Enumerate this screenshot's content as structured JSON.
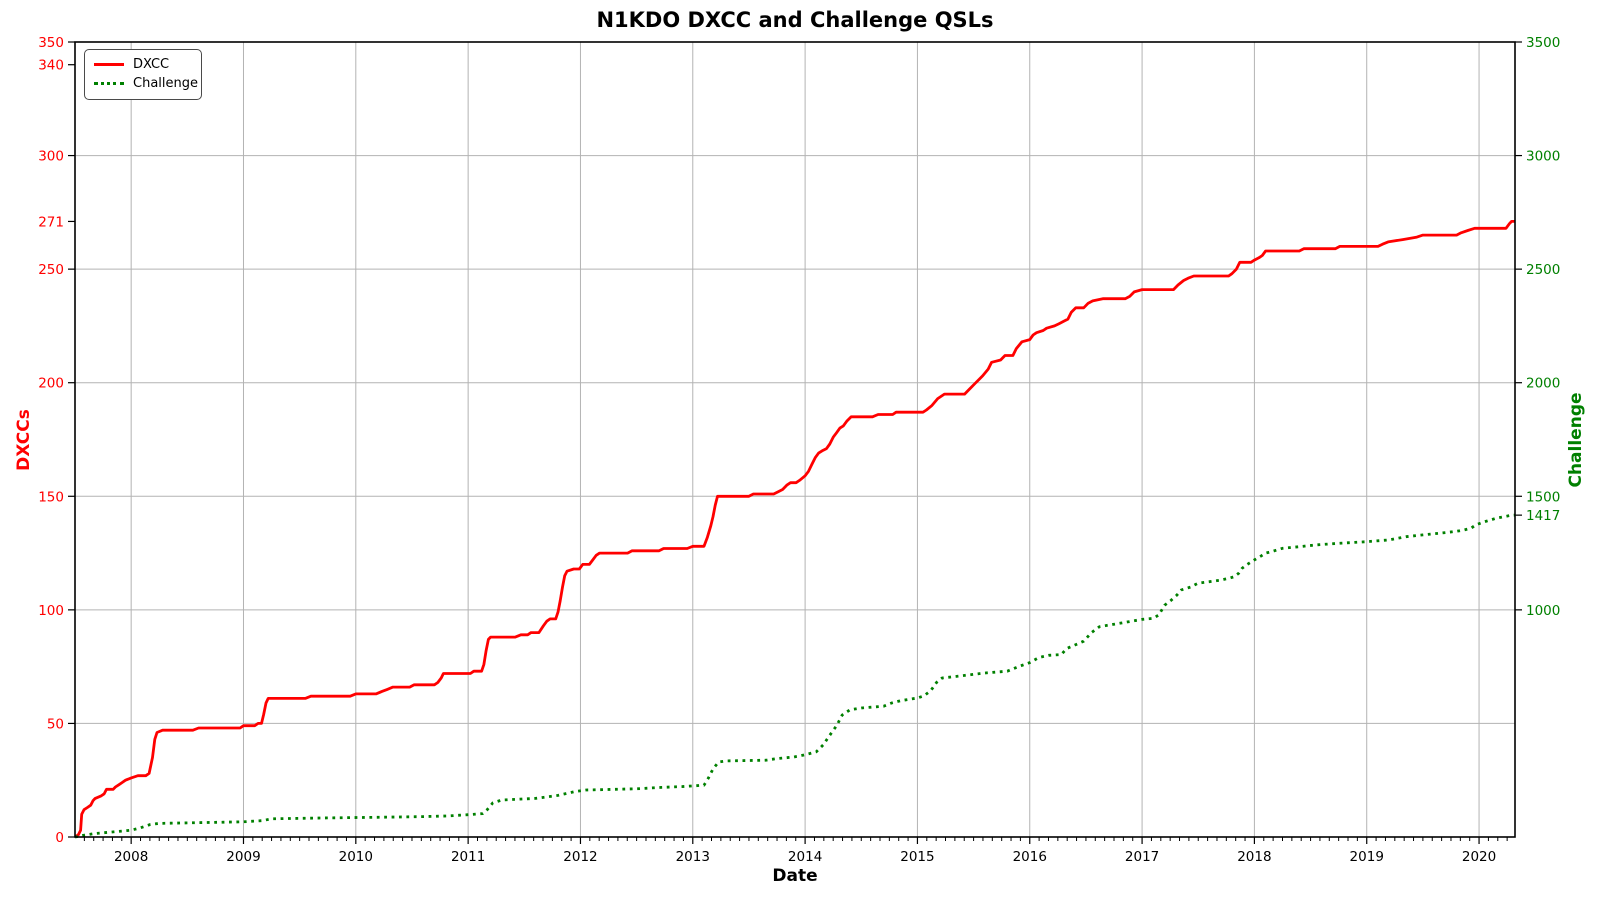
{
  "chart_data": {
    "type": "line",
    "title": "N1KDO DXCC and Challenge QSLs",
    "xlabel": "Date",
    "ylabel_left": "DXCCs",
    "ylabel_right": "Challenge",
    "grid": true,
    "legend_position": "upper-left",
    "colors": {
      "dxcc": "#ff0000",
      "challenge": "#008000",
      "grid": "#b3b3b3",
      "spine": "#000000"
    },
    "x_domain": [
      2007.5,
      2020.32
    ],
    "x_tick_years": [
      2008,
      2009,
      2010,
      2011,
      2012,
      2013,
      2014,
      2015,
      2016,
      2017,
      2018,
      2019,
      2020
    ],
    "y_left": {
      "lim": [
        0,
        350
      ],
      "ticks": [
        0,
        50,
        100,
        150,
        200,
        250,
        271,
        300,
        340,
        350
      ],
      "gridlines": [
        50,
        100,
        150,
        200,
        250,
        300,
        350
      ]
    },
    "y_right": {
      "lim": [
        0,
        3500
      ],
      "ticks": [
        1000,
        1417,
        1500,
        2000,
        2500,
        3000,
        3500
      ]
    },
    "legend": [
      {
        "label": "DXCC",
        "style": "solid"
      },
      {
        "label": "Challenge",
        "style": "dotted"
      }
    ],
    "series": [
      {
        "name": "DXCC",
        "axis": "left",
        "style": "solid",
        "points": [
          [
            2007.5,
            0
          ],
          [
            2007.53,
            1
          ],
          [
            2007.55,
            3
          ],
          [
            2007.56,
            10
          ],
          [
            2007.58,
            12
          ],
          [
            2007.61,
            13
          ],
          [
            2007.64,
            14
          ],
          [
            2007.66,
            16
          ],
          [
            2007.68,
            17
          ],
          [
            2007.73,
            18
          ],
          [
            2007.76,
            19
          ],
          [
            2007.78,
            21
          ],
          [
            2007.84,
            21
          ],
          [
            2007.86,
            22
          ],
          [
            2007.89,
            23
          ],
          [
            2007.92,
            24
          ],
          [
            2007.95,
            25
          ],
          [
            2008.0,
            26
          ],
          [
            2008.06,
            27
          ],
          [
            2008.13,
            27
          ],
          [
            2008.16,
            28
          ],
          [
            2008.19,
            35
          ],
          [
            2008.21,
            43
          ],
          [
            2008.23,
            46
          ],
          [
            2008.28,
            47
          ],
          [
            2008.55,
            47
          ],
          [
            2008.6,
            48
          ],
          [
            2008.97,
            48
          ],
          [
            2009.0,
            49
          ],
          [
            2009.1,
            49
          ],
          [
            2009.13,
            50
          ],
          [
            2009.16,
            50
          ],
          [
            2009.18,
            54
          ],
          [
            2009.2,
            59
          ],
          [
            2009.22,
            61
          ],
          [
            2009.55,
            61
          ],
          [
            2009.6,
            62
          ],
          [
            2009.95,
            62
          ],
          [
            2010.0,
            63
          ],
          [
            2010.18,
            63
          ],
          [
            2010.23,
            64
          ],
          [
            2010.28,
            65
          ],
          [
            2010.33,
            66
          ],
          [
            2010.48,
            66
          ],
          [
            2010.52,
            67
          ],
          [
            2010.7,
            67
          ],
          [
            2010.73,
            68
          ],
          [
            2010.76,
            70
          ],
          [
            2010.78,
            72
          ],
          [
            2011.02,
            72
          ],
          [
            2011.05,
            73
          ],
          [
            2011.12,
            73
          ],
          [
            2011.14,
            76
          ],
          [
            2011.16,
            82
          ],
          [
            2011.18,
            87
          ],
          [
            2011.2,
            88
          ],
          [
            2011.42,
            88
          ],
          [
            2011.47,
            89
          ],
          [
            2011.53,
            89
          ],
          [
            2011.56,
            90
          ],
          [
            2011.63,
            90
          ],
          [
            2011.67,
            93
          ],
          [
            2011.7,
            95
          ],
          [
            2011.73,
            96
          ],
          [
            2011.78,
            96
          ],
          [
            2011.8,
            99
          ],
          [
            2011.82,
            104
          ],
          [
            2011.84,
            110
          ],
          [
            2011.86,
            115
          ],
          [
            2011.88,
            117
          ],
          [
            2011.94,
            118
          ],
          [
            2011.99,
            118
          ],
          [
            2012.02,
            120
          ],
          [
            2012.08,
            120
          ],
          [
            2012.11,
            122
          ],
          [
            2012.14,
            124
          ],
          [
            2012.17,
            125
          ],
          [
            2012.42,
            125
          ],
          [
            2012.46,
            126
          ],
          [
            2012.7,
            126
          ],
          [
            2012.74,
            127
          ],
          [
            2012.95,
            127
          ],
          [
            2013.0,
            128
          ],
          [
            2013.1,
            128
          ],
          [
            2013.13,
            132
          ],
          [
            2013.16,
            137
          ],
          [
            2013.18,
            141
          ],
          [
            2013.2,
            146
          ],
          [
            2013.22,
            150
          ],
          [
            2013.5,
            150
          ],
          [
            2013.54,
            151
          ],
          [
            2013.72,
            151
          ],
          [
            2013.76,
            152
          ],
          [
            2013.8,
            153
          ],
          [
            2013.84,
            155
          ],
          [
            2013.87,
            156
          ],
          [
            2013.92,
            156
          ],
          [
            2013.95,
            157
          ],
          [
            2014.0,
            159
          ],
          [
            2014.03,
            161
          ],
          [
            2014.06,
            164
          ],
          [
            2014.09,
            167
          ],
          [
            2014.12,
            169
          ],
          [
            2014.15,
            170
          ],
          [
            2014.19,
            171
          ],
          [
            2014.22,
            173
          ],
          [
            2014.25,
            176
          ],
          [
            2014.28,
            178
          ],
          [
            2014.31,
            180
          ],
          [
            2014.34,
            181
          ],
          [
            2014.37,
            183
          ],
          [
            2014.41,
            185
          ],
          [
            2014.6,
            185
          ],
          [
            2014.65,
            186
          ],
          [
            2014.78,
            186
          ],
          [
            2014.81,
            187
          ],
          [
            2015.05,
            187
          ],
          [
            2015.08,
            188
          ],
          [
            2015.13,
            190
          ],
          [
            2015.18,
            193
          ],
          [
            2015.24,
            195
          ],
          [
            2015.42,
            195
          ],
          [
            2015.46,
            197
          ],
          [
            2015.52,
            200
          ],
          [
            2015.58,
            203
          ],
          [
            2015.63,
            206
          ],
          [
            2015.66,
            209
          ],
          [
            2015.74,
            210
          ],
          [
            2015.78,
            212
          ],
          [
            2015.85,
            212
          ],
          [
            2015.88,
            215
          ],
          [
            2015.93,
            218
          ],
          [
            2016.0,
            219
          ],
          [
            2016.03,
            221
          ],
          [
            2016.06,
            222
          ],
          [
            2016.12,
            223
          ],
          [
            2016.15,
            224
          ],
          [
            2016.22,
            225
          ],
          [
            2016.26,
            226
          ],
          [
            2016.3,
            227
          ],
          [
            2016.34,
            228
          ],
          [
            2016.37,
            231
          ],
          [
            2016.41,
            233
          ],
          [
            2016.48,
            233
          ],
          [
            2016.52,
            235
          ],
          [
            2016.56,
            236
          ],
          [
            2016.65,
            237
          ],
          [
            2016.85,
            237
          ],
          [
            2016.89,
            238
          ],
          [
            2016.93,
            240
          ],
          [
            2017.0,
            241
          ],
          [
            2017.28,
            241
          ],
          [
            2017.32,
            243
          ],
          [
            2017.37,
            245
          ],
          [
            2017.41,
            246
          ],
          [
            2017.46,
            247
          ],
          [
            2017.77,
            247
          ],
          [
            2017.8,
            248
          ],
          [
            2017.84,
            250
          ],
          [
            2017.87,
            253
          ],
          [
            2017.97,
            253
          ],
          [
            2018.0,
            254
          ],
          [
            2018.04,
            255
          ],
          [
            2018.07,
            256
          ],
          [
            2018.1,
            258
          ],
          [
            2018.4,
            258
          ],
          [
            2018.44,
            259
          ],
          [
            2018.72,
            259
          ],
          [
            2018.76,
            260
          ],
          [
            2019.1,
            260
          ],
          [
            2019.14,
            261
          ],
          [
            2019.19,
            262
          ],
          [
            2019.32,
            263
          ],
          [
            2019.44,
            264
          ],
          [
            2019.5,
            265
          ],
          [
            2019.8,
            265
          ],
          [
            2019.84,
            266
          ],
          [
            2019.9,
            267
          ],
          [
            2019.96,
            268
          ],
          [
            2020.24,
            268
          ],
          [
            2020.27,
            270
          ],
          [
            2020.29,
            271
          ],
          [
            2020.32,
            271
          ]
        ]
      },
      {
        "name": "Challenge",
        "axis": "right",
        "style": "dotted",
        "points": [
          [
            2007.5,
            0
          ],
          [
            2007.58,
            8
          ],
          [
            2007.67,
            15
          ],
          [
            2007.83,
            22
          ],
          [
            2008.0,
            30
          ],
          [
            2008.08,
            40
          ],
          [
            2008.17,
            55
          ],
          [
            2008.25,
            60
          ],
          [
            2008.58,
            63
          ],
          [
            2009.0,
            67
          ],
          [
            2009.17,
            72
          ],
          [
            2009.25,
            80
          ],
          [
            2009.75,
            84
          ],
          [
            2010.25,
            87
          ],
          [
            2010.6,
            90
          ],
          [
            2010.83,
            93
          ],
          [
            2011.0,
            98
          ],
          [
            2011.13,
            103
          ],
          [
            2011.17,
            120
          ],
          [
            2011.22,
            150
          ],
          [
            2011.3,
            163
          ],
          [
            2011.6,
            170
          ],
          [
            2011.8,
            183
          ],
          [
            2011.95,
            200
          ],
          [
            2012.05,
            207
          ],
          [
            2012.5,
            212
          ],
          [
            2012.7,
            218
          ],
          [
            2012.9,
            222
          ],
          [
            2013.0,
            225
          ],
          [
            2013.1,
            228
          ],
          [
            2013.14,
            260
          ],
          [
            2013.18,
            300
          ],
          [
            2013.23,
            330
          ],
          [
            2013.3,
            335
          ],
          [
            2013.65,
            338
          ],
          [
            2013.75,
            345
          ],
          [
            2013.9,
            352
          ],
          [
            2014.0,
            362
          ],
          [
            2014.1,
            375
          ],
          [
            2014.16,
            405
          ],
          [
            2014.22,
            448
          ],
          [
            2014.28,
            490
          ],
          [
            2014.33,
            537
          ],
          [
            2014.4,
            560
          ],
          [
            2014.5,
            568
          ],
          [
            2014.7,
            576
          ],
          [
            2014.77,
            590
          ],
          [
            2014.85,
            600
          ],
          [
            2015.0,
            612
          ],
          [
            2015.06,
            622
          ],
          [
            2015.12,
            645
          ],
          [
            2015.17,
            680
          ],
          [
            2015.22,
            700
          ],
          [
            2015.4,
            710
          ],
          [
            2015.6,
            722
          ],
          [
            2015.8,
            730
          ],
          [
            2015.9,
            750
          ],
          [
            2016.0,
            768
          ],
          [
            2016.08,
            790
          ],
          [
            2016.17,
            800
          ],
          [
            2016.28,
            803
          ],
          [
            2016.33,
            830
          ],
          [
            2016.4,
            845
          ],
          [
            2016.48,
            862
          ],
          [
            2016.55,
            900
          ],
          [
            2016.62,
            926
          ],
          [
            2016.8,
            941
          ],
          [
            2017.0,
            958
          ],
          [
            2017.1,
            963
          ],
          [
            2017.15,
            978
          ],
          [
            2017.2,
            1020
          ],
          [
            2017.26,
            1043
          ],
          [
            2017.31,
            1065
          ],
          [
            2017.35,
            1088
          ],
          [
            2017.43,
            1100
          ],
          [
            2017.5,
            1118
          ],
          [
            2017.6,
            1124
          ],
          [
            2017.7,
            1131
          ],
          [
            2017.78,
            1140
          ],
          [
            2017.82,
            1146
          ],
          [
            2017.86,
            1161
          ],
          [
            2017.89,
            1183
          ],
          [
            2017.93,
            1198
          ],
          [
            2018.0,
            1220
          ],
          [
            2018.05,
            1234
          ],
          [
            2018.1,
            1250
          ],
          [
            2018.15,
            1256
          ],
          [
            2018.25,
            1271
          ],
          [
            2018.4,
            1278
          ],
          [
            2018.55,
            1286
          ],
          [
            2018.75,
            1293
          ],
          [
            2019.0,
            1300
          ],
          [
            2019.2,
            1308
          ],
          [
            2019.35,
            1322
          ],
          [
            2019.5,
            1330
          ],
          [
            2019.7,
            1340
          ],
          [
            2019.8,
            1346
          ],
          [
            2019.87,
            1352
          ],
          [
            2019.93,
            1360
          ],
          [
            2019.97,
            1374
          ],
          [
            2020.05,
            1388
          ],
          [
            2020.15,
            1403
          ],
          [
            2020.22,
            1410
          ],
          [
            2020.28,
            1416
          ],
          [
            2020.32,
            1417
          ]
        ]
      }
    ]
  }
}
